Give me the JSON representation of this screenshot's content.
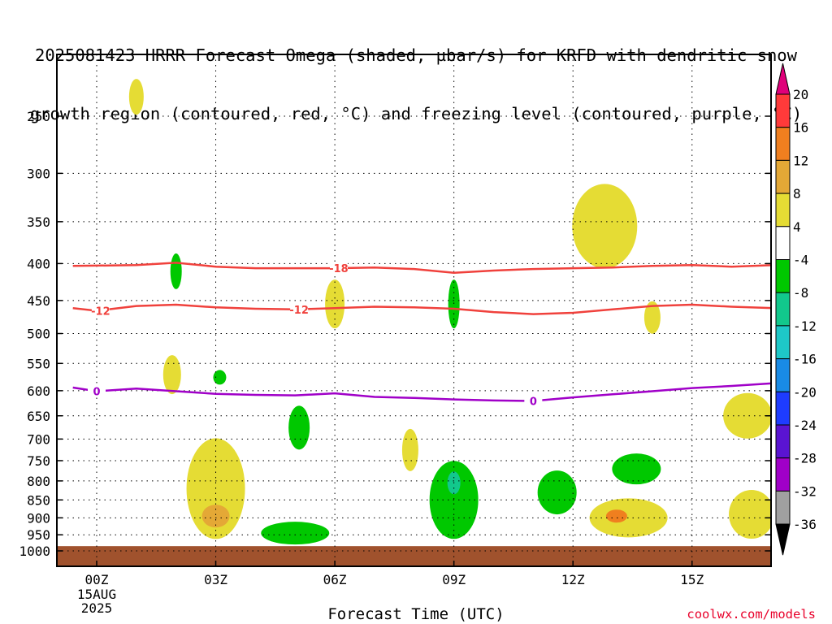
{
  "title": {
    "line1": "2025081423 HRRR Forecast Omega (shaded, µbar/s) for KRFD with dendritic snow",
    "line2": "growth region (contoured, red, °C) and freezing level (contoured, purple, °C)"
  },
  "footer": {
    "credit": "coolwx.com/models"
  },
  "chart_data": {
    "type": "contour",
    "xlabel": "Forecast Time (UTC)",
    "x_range_hours": [
      -0.6,
      17.0
    ],
    "x_ticks": [
      {
        "hour": 0,
        "label": "00Z"
      },
      {
        "hour": 3,
        "label": "03Z"
      },
      {
        "hour": 6,
        "label": "06Z"
      },
      {
        "hour": 9,
        "label": "09Z"
      },
      {
        "hour": 12,
        "label": "12Z"
      },
      {
        "hour": 15,
        "label": "15Z"
      }
    ],
    "x_start_date_label": [
      "15AUG",
      "2025"
    ],
    "y_range_mb": [
      1030,
      200
    ],
    "y_ticks": [
      250,
      300,
      350,
      400,
      450,
      500,
      550,
      600,
      650,
      700,
      750,
      800,
      850,
      900,
      950,
      1000
    ],
    "colorbar": {
      "labels": [
        "20",
        "16",
        "12",
        "8",
        "4",
        "-4",
        "-8",
        "-12",
        "-16",
        "-20",
        "-24",
        "-28",
        "-32",
        "-36"
      ],
      "bins": [
        {
          "color": "#e0007a"
        },
        {
          "color": "#ff3a3a"
        },
        {
          "color": "#f07f1f"
        },
        {
          "color": "#e4a836"
        },
        {
          "color": "#e5dc34"
        },
        {
          "color": "#ffffff"
        },
        {
          "color": "#00c800"
        },
        {
          "color": "#12c88c"
        },
        {
          "color": "#1ec8c8"
        },
        {
          "color": "#198be6"
        },
        {
          "color": "#1e3cff"
        },
        {
          "color": "#5a14d2"
        },
        {
          "color": "#a000c8"
        },
        {
          "color": "#a0a0a0"
        },
        {
          "color": "#000000"
        }
      ]
    },
    "contours": [
      {
        "name": "-18",
        "color": "#f0413c",
        "points": [
          [
            -0.6,
            403
          ],
          [
            1,
            402
          ],
          [
            2,
            399
          ],
          [
            3,
            404
          ],
          [
            4,
            406
          ],
          [
            5,
            406
          ],
          [
            6,
            406
          ],
          [
            7,
            405
          ],
          [
            8,
            407
          ],
          [
            9,
            412
          ],
          [
            10,
            409
          ],
          [
            11,
            407
          ],
          [
            12,
            406
          ],
          [
            13,
            405
          ],
          [
            14,
            403
          ],
          [
            15,
            402
          ],
          [
            16,
            404
          ],
          [
            17,
            402
          ]
        ],
        "labels": [
          {
            "hour": 6.1,
            "mb": 406,
            "text": "-18"
          }
        ]
      },
      {
        "name": "-12",
        "color": "#f0413c",
        "points": [
          [
            -0.6,
            461
          ],
          [
            0,
            465
          ],
          [
            1,
            458
          ],
          [
            2,
            456
          ],
          [
            3,
            460
          ],
          [
            4,
            462
          ],
          [
            5,
            463
          ],
          [
            6,
            461
          ],
          [
            7,
            459
          ],
          [
            8,
            460
          ],
          [
            9,
            462
          ],
          [
            10,
            467
          ],
          [
            11,
            470
          ],
          [
            12,
            468
          ],
          [
            13,
            463
          ],
          [
            14,
            458
          ],
          [
            15,
            456
          ],
          [
            16,
            459
          ],
          [
            17,
            461
          ]
        ],
        "labels": [
          {
            "hour": 0.1,
            "mb": 465,
            "text": "-12"
          },
          {
            "hour": 5.1,
            "mb": 463,
            "text": "-12"
          }
        ]
      },
      {
        "name": "0",
        "color": "#a000c8",
        "points": [
          [
            -0.6,
            594
          ],
          [
            0,
            601
          ],
          [
            1,
            596
          ],
          [
            2,
            601
          ],
          [
            3,
            606
          ],
          [
            4,
            608
          ],
          [
            5,
            609
          ],
          [
            6,
            605
          ],
          [
            7,
            612
          ],
          [
            8,
            614
          ],
          [
            9,
            617
          ],
          [
            10,
            619
          ],
          [
            11,
            620
          ],
          [
            12,
            613
          ],
          [
            13,
            607
          ],
          [
            14,
            601
          ],
          [
            15,
            595
          ],
          [
            16,
            591
          ],
          [
            17,
            586
          ]
        ],
        "labels": [
          {
            "hour": 0.0,
            "mb": 601,
            "text": "0"
          },
          {
            "hour": 11.0,
            "mb": 620,
            "text": "0"
          }
        ]
      }
    ],
    "omega_regions": [
      {
        "value_bin": "4 to 8",
        "color": "#e5dc34",
        "center_hour": 1.0,
        "center_mb": 235
      },
      {
        "value_bin": "-4 to -8",
        "color": "#00c800",
        "center_hour": 2.0,
        "center_mb": 410
      },
      {
        "value_bin": "4 to 8",
        "color": "#e5dc34",
        "center_hour": 6.0,
        "center_mb": 455
      },
      {
        "value_bin": "-4 to -8",
        "color": "#00c800",
        "center_hour": 9.0,
        "center_mb": 455
      },
      {
        "value_bin": "4 to 8",
        "color": "#e5dc34",
        "center_hour": 12.8,
        "center_mb": 355
      },
      {
        "value_bin": "4 to 8",
        "color": "#e5dc34",
        "center_hour": 14.0,
        "center_mb": 475
      },
      {
        "value_bin": "4 to 8",
        "color": "#e5dc34",
        "center_hour": 1.9,
        "center_mb": 570
      },
      {
        "value_bin": "-4 to -8",
        "color": "#00c800",
        "center_hour": 3.1,
        "center_mb": 575
      },
      {
        "value_bin": "-4 to -8",
        "color": "#00c800",
        "center_hour": 5.1,
        "center_mb": 675
      },
      {
        "value_bin": "4 to 8",
        "color": "#e5dc34",
        "center_hour": 7.9,
        "center_mb": 725
      },
      {
        "value_bin": "4 to 8",
        "color": "#e5dc34",
        "center_hour": 3.0,
        "center_mb": 820
      },
      {
        "value_bin": "8 to 12",
        "color": "#e4a836",
        "center_hour": 3.0,
        "center_mb": 895
      },
      {
        "value_bin": "-4 to -8",
        "color": "#00c800",
        "center_hour": 5.0,
        "center_mb": 945
      },
      {
        "value_bin": "-4 to -8",
        "color": "#00c800",
        "center_hour": 9.0,
        "center_mb": 850
      },
      {
        "value_bin": "-8 to -12",
        "color": "#12c88c",
        "center_hour": 9.0,
        "center_mb": 805
      },
      {
        "value_bin": "-4 to -8",
        "color": "#00c800",
        "center_hour": 11.6,
        "center_mb": 830
      },
      {
        "value_bin": "-4 to -8",
        "color": "#00c800",
        "center_hour": 13.6,
        "center_mb": 770
      },
      {
        "value_bin": "4 to 8",
        "color": "#e5dc34",
        "center_hour": 13.4,
        "center_mb": 900
      },
      {
        "value_bin": "12 to 16",
        "color": "#f07f1f",
        "center_hour": 13.1,
        "center_mb": 895
      },
      {
        "value_bin": "4 to 8",
        "color": "#e5dc34",
        "center_hour": 16.4,
        "center_mb": 650
      },
      {
        "value_bin": "4 to 8",
        "color": "#e5dc34",
        "center_hour": 16.5,
        "center_mb": 890
      }
    ],
    "surface_fill": {
      "color": "#a0522d",
      "top_mb": 985
    }
  }
}
